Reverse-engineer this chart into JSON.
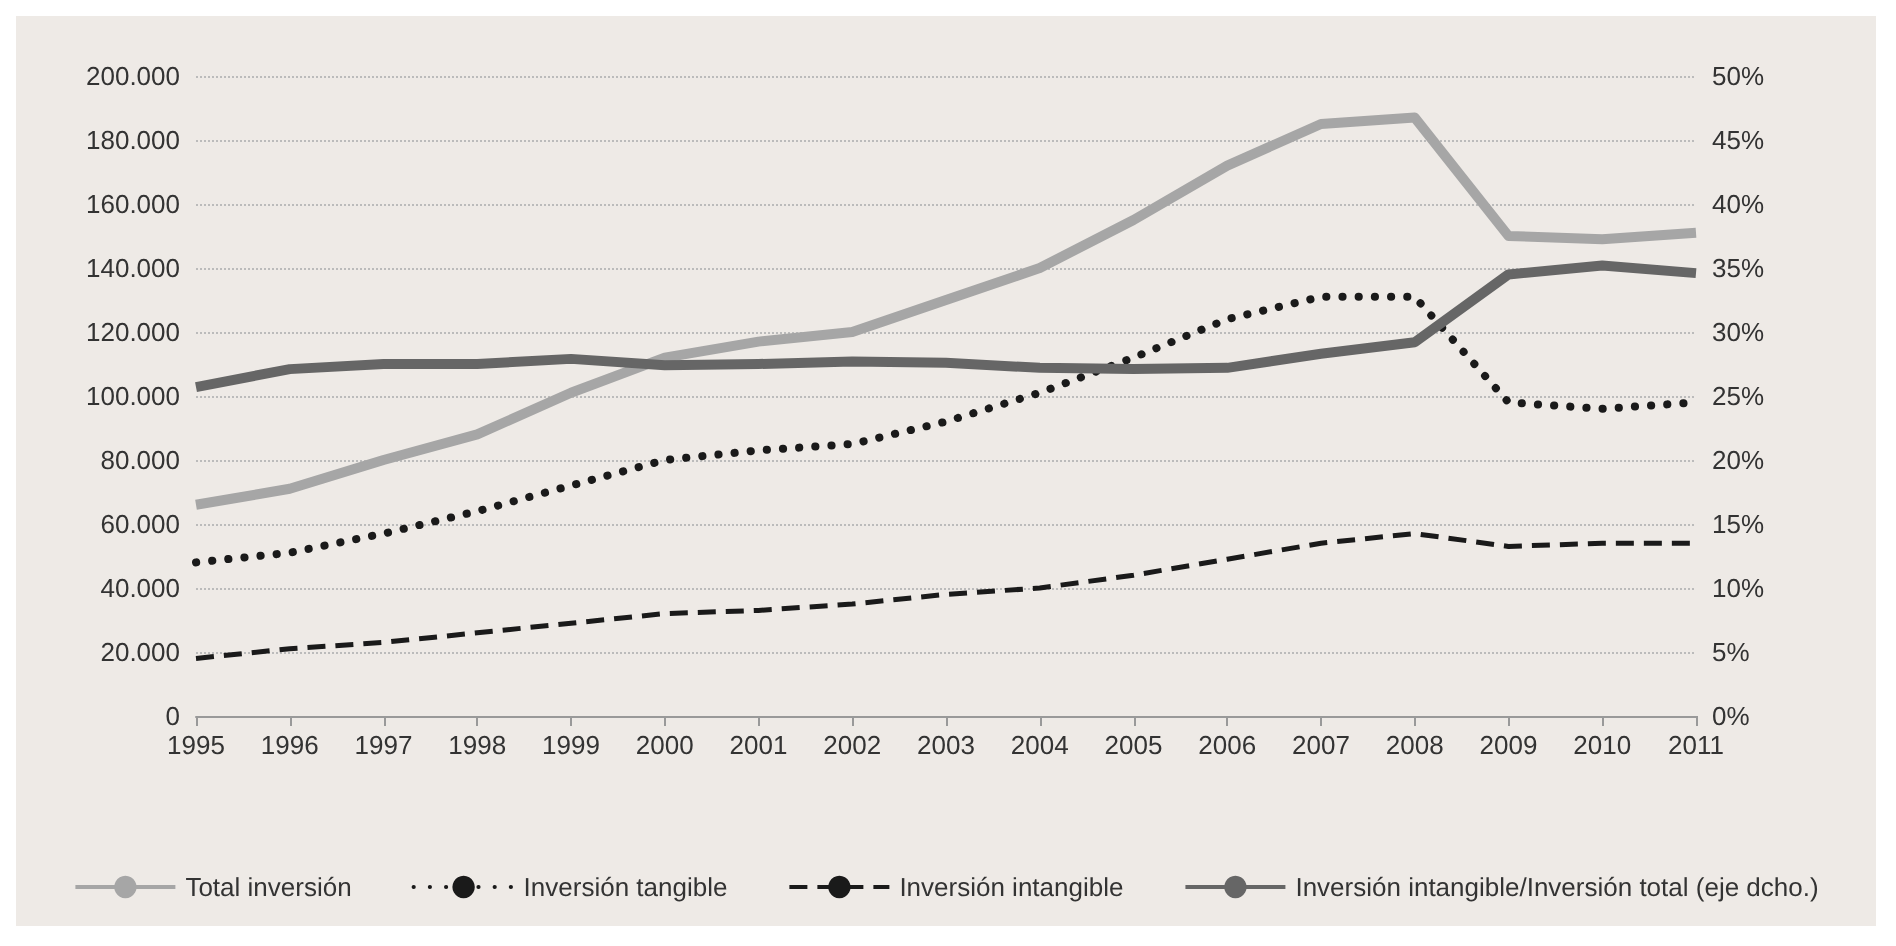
{
  "chart_data": {
    "type": "line",
    "x": [
      1995,
      1996,
      1997,
      1998,
      1999,
      2000,
      2001,
      2002,
      2003,
      2004,
      2005,
      2006,
      2007,
      2008,
      2009,
      2010,
      2011
    ],
    "xlim": [
      1995,
      2011
    ],
    "xticks": [
      1995,
      1996,
      1997,
      1998,
      1999,
      2000,
      2001,
      2002,
      2003,
      2004,
      2005,
      2006,
      2007,
      2008,
      2009,
      2010,
      2011
    ],
    "ylim": [
      0,
      200000
    ],
    "yticks": [
      0,
      {
        "value": 20000,
        "label": "20.000"
      },
      {
        "value": 40000,
        "label": "40.000"
      },
      {
        "value": 60000,
        "label": "60.000"
      },
      {
        "value": 80000,
        "label": "80.000"
      },
      {
        "value": 100000,
        "label": "100.000"
      },
      {
        "value": 120000,
        "label": "120.000"
      },
      {
        "value": 140000,
        "label": "140.000"
      },
      {
        "value": 160000,
        "label": "160.000"
      },
      {
        "value": 180000,
        "label": "180.000"
      },
      {
        "value": 200000,
        "label": "200.000"
      }
    ],
    "y2lim": [
      0,
      50
    ],
    "y2ticks": [
      {
        "value": 0,
        "label": "0%"
      },
      {
        "value": 5,
        "label": "5%"
      },
      {
        "value": 10,
        "label": "10%"
      },
      {
        "value": 15,
        "label": "15%"
      },
      {
        "value": 20,
        "label": "20%"
      },
      {
        "value": 25,
        "label": "25%"
      },
      {
        "value": 30,
        "label": "30%"
      },
      {
        "value": 35,
        "label": "35%"
      },
      {
        "value": 40,
        "label": "40%"
      },
      {
        "value": 45,
        "label": "45%"
      },
      {
        "value": 50,
        "label": "50%"
      }
    ],
    "grid": "y",
    "legend": "bottom",
    "marker": "none",
    "series": [
      {
        "name": "Total inversión",
        "color": "#a6a6a6",
        "line_style": "solid",
        "values": [
          66000,
          71000,
          80000,
          88000,
          101000,
          112000,
          117000,
          120000,
          130000,
          140000,
          155000,
          172000,
          185000,
          187000,
          150000,
          149000,
          151000
        ]
      },
      {
        "name": "Inversión tangible",
        "color": "#1a1a1a",
        "line_style": "dotted",
        "values": [
          48000,
          51000,
          57000,
          64000,
          72000,
          80000,
          83000,
          85000,
          92000,
          101000,
          112000,
          124000,
          131000,
          131000,
          98000,
          96000,
          98000
        ]
      },
      {
        "name": "Inversión intangible",
        "color": "#1a1a1a",
        "line_style": "dashed",
        "values": [
          18000,
          21000,
          23000,
          26000,
          29000,
          32000,
          33000,
          35000,
          38000,
          40000,
          44000,
          49000,
          54000,
          57000,
          53000,
          54000,
          54000
        ]
      },
      {
        "name": "Inversión intangible/Inversión total (eje dcho.)",
        "color": "#666666",
        "line_style": "solid",
        "axis": "y2",
        "values": [
          25.7,
          27.1,
          27.5,
          27.5,
          27.9,
          27.4,
          27.5,
          27.7,
          27.6,
          27.2,
          27.1,
          27.2,
          28.3,
          29.2,
          34.5,
          35.2,
          34.6
        ]
      }
    ]
  }
}
